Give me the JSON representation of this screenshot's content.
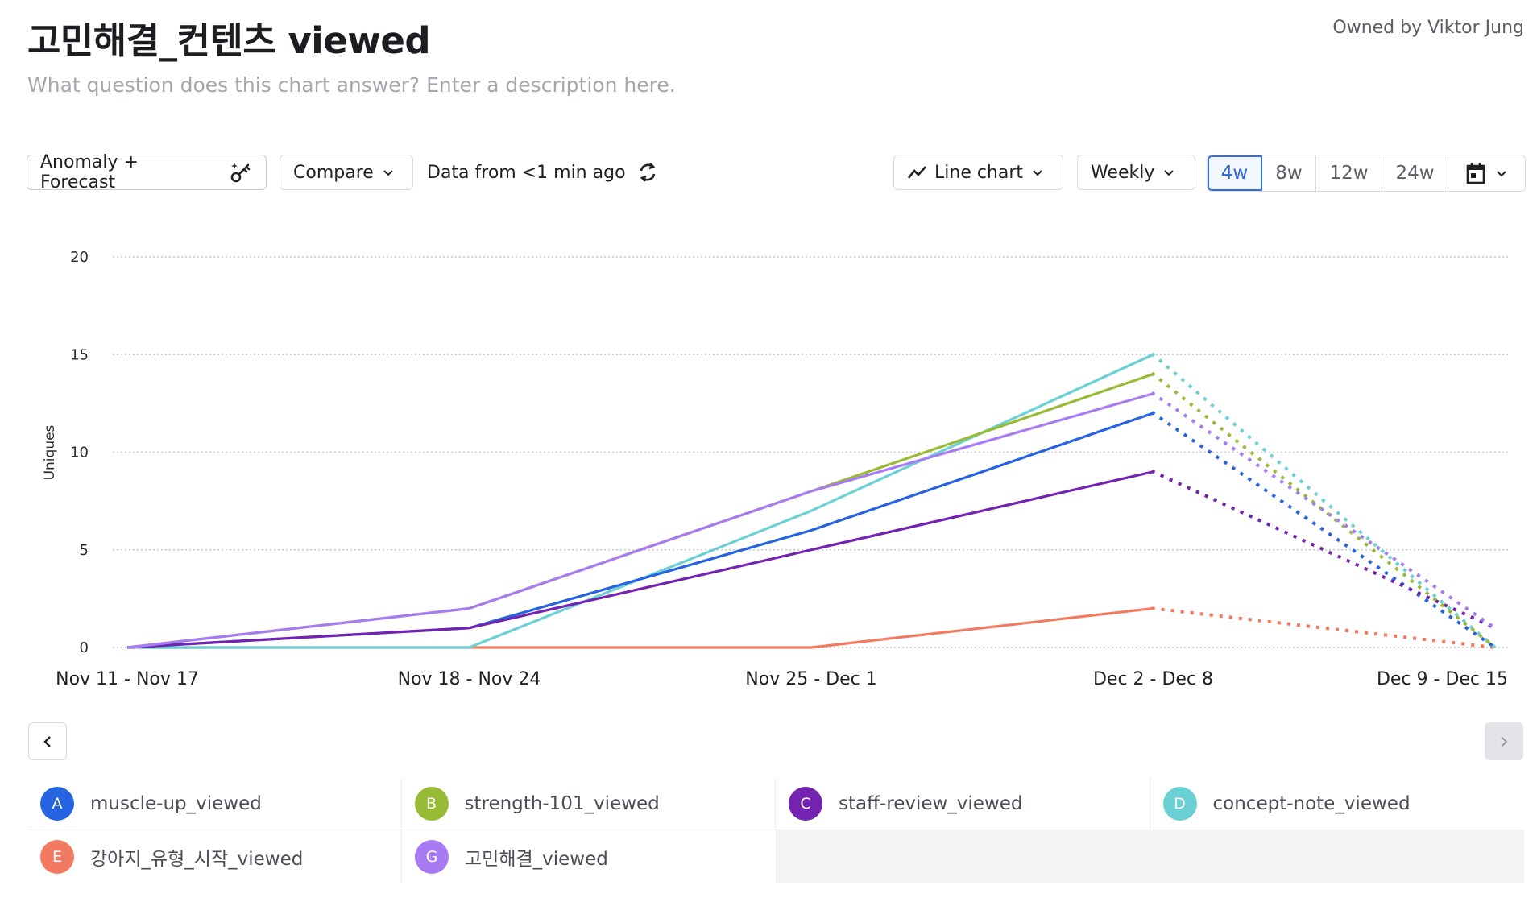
{
  "header": {
    "title": "고민해결_컨텐츠 viewed",
    "owner": "Owned by Viktor Jung",
    "description_placeholder": "What question does this chart answer? Enter a description here."
  },
  "toolbar": {
    "anomaly_label": "Anomaly + Forecast",
    "anomaly_icon": "sparkle-key-icon",
    "compare_label": "Compare",
    "data_freshness": "Data from <1 min ago",
    "refresh_icon": "refresh-icon",
    "chart_type_label": "Line chart",
    "chart_type_icon": "line-chart-icon",
    "interval_label": "Weekly",
    "ranges": [
      {
        "label": "4w",
        "active": true
      },
      {
        "label": "8w",
        "active": false
      },
      {
        "label": "12w",
        "active": false
      },
      {
        "label": "24w",
        "active": false
      }
    ],
    "calendar_icon": "calendar-icon"
  },
  "pagination": {
    "prev_icon": "chevron-left-icon",
    "next_icon": "chevron-right-icon"
  },
  "chart_data": {
    "type": "line",
    "title": "고민해결_컨텐츠 viewed",
    "xlabel": "",
    "ylabel": "Uniques",
    "ylim": [
      0,
      20
    ],
    "yticks": [
      0,
      5,
      10,
      15,
      20
    ],
    "grid": true,
    "categories": [
      "Nov 11 - Nov 17",
      "Nov 18 - Nov 24",
      "Nov 25 - Dec 1",
      "Dec 2 - Dec 8",
      "Dec 9 - Dec 15"
    ],
    "incomplete_from_index": 3,
    "legend_position": "bottom",
    "series": [
      {
        "key": "A",
        "name": "muscle-up_viewed",
        "color": "#2563e0",
        "values": [
          0,
          1,
          6,
          12,
          0
        ]
      },
      {
        "key": "B",
        "name": "strength-101_viewed",
        "color": "#97bb35",
        "values": [
          0,
          2,
          8,
          14,
          0
        ]
      },
      {
        "key": "C",
        "name": "staff-review_viewed",
        "color": "#7422b0",
        "values": [
          0,
          1,
          5,
          9,
          1
        ]
      },
      {
        "key": "D",
        "name": "concept-note_viewed",
        "color": "#6bd0d4",
        "values": [
          0,
          0,
          7,
          15,
          0
        ]
      },
      {
        "key": "E",
        "name": "강아지_유형_시작_viewed",
        "color": "#f27a61",
        "values": [
          0,
          0,
          0,
          2,
          0
        ]
      },
      {
        "key": "G",
        "name": "고민해결_viewed",
        "color": "#a77bf3",
        "values": [
          0,
          2,
          8,
          13,
          1
        ]
      }
    ]
  }
}
